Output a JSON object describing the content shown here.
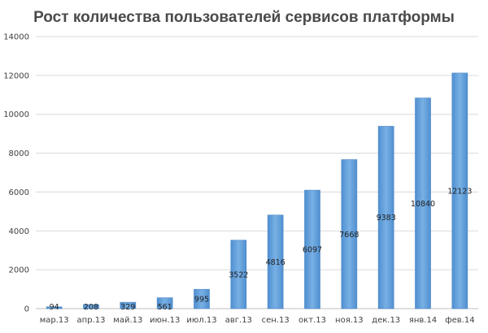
{
  "chart_data": {
    "type": "bar",
    "title": "Рост количества пользователей сервисов платформы",
    "xlabel": "",
    "ylabel": "",
    "categories": [
      "мар.13",
      "апр.13",
      "май.13",
      "июн.13",
      "июл.13",
      "авг.13",
      "сен.13",
      "окт.13",
      "ноя.13",
      "дек.13",
      "янв.14",
      "фев.14"
    ],
    "series": [
      {
        "values": [
          94,
          208,
          329,
          561,
          995,
          3522,
          4816,
          6097,
          7668,
          9383,
          10840,
          12123
        ]
      }
    ],
    "ylim": [
      0,
      14000
    ],
    "yticks": [
      0,
      2000,
      4000,
      6000,
      8000,
      10000,
      12000,
      14000
    ],
    "grid": true,
    "legend": "none",
    "bar_color": "#5b9bd5",
    "data_labels": true
  }
}
